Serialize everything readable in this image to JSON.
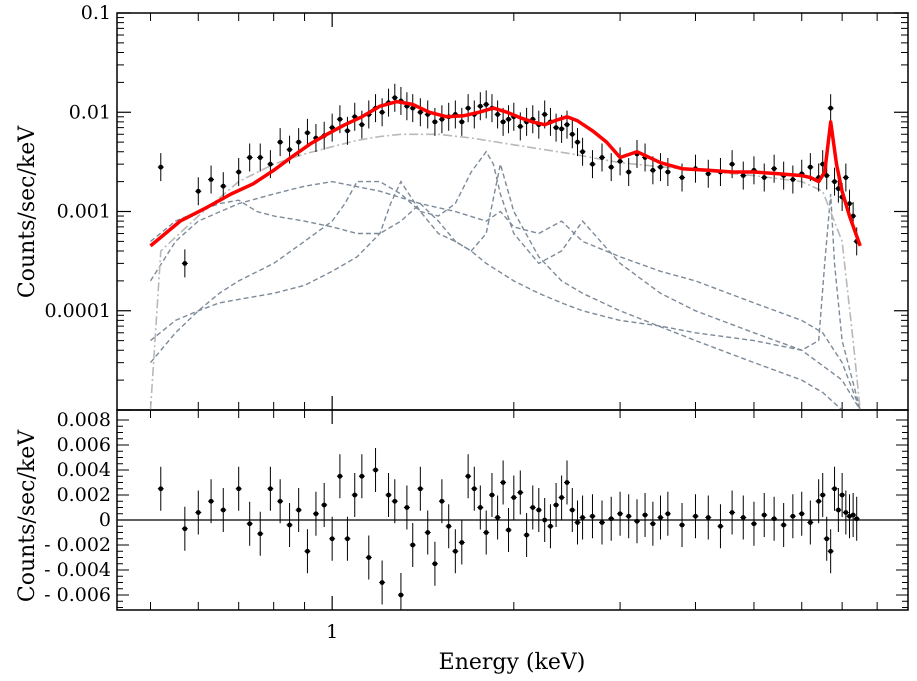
{
  "chart_data": [
    {
      "panel": "spectrum",
      "type": "scatter",
      "x_scale": "log",
      "y_scale": "log",
      "xlim": [
        0.44,
        9.0
      ],
      "ylim": [
        1e-05,
        0.1
      ],
      "ylabel": "Counts/sec/keV",
      "y_tick_labels": [
        {
          "value": 0.1,
          "label": "0.1"
        },
        {
          "value": 0.01,
          "label": "0.01"
        },
        {
          "value": 0.001,
          "label": "0.001"
        },
        {
          "value": 0.0001,
          "label": "0.0001"
        }
      ],
      "colors": {
        "data": "#000000",
        "model": "#ff0000",
        "continuum": "#b9b9b9",
        "components": "#7d8b99"
      },
      "model": {
        "name": "total model",
        "x": [
          0.5,
          0.56,
          0.62,
          0.68,
          0.74,
          0.8,
          0.86,
          0.92,
          0.98,
          1.05,
          1.12,
          1.2,
          1.28,
          1.36,
          1.45,
          1.55,
          1.65,
          1.75,
          1.85,
          1.95,
          2.05,
          2.15,
          2.25,
          2.35,
          2.45,
          2.55,
          2.7,
          2.85,
          3.0,
          3.2,
          3.5,
          3.8,
          4.2,
          4.6,
          5.0,
          5.5,
          6.0,
          6.2,
          6.4,
          6.55,
          6.7,
          6.85,
          7.0,
          7.2,
          7.5
        ],
        "y": [
          0.00045,
          0.0008,
          0.0011,
          0.0015,
          0.0019,
          0.0026,
          0.0036,
          0.0048,
          0.006,
          0.0075,
          0.009,
          0.0115,
          0.0128,
          0.012,
          0.01,
          0.009,
          0.0092,
          0.01,
          0.011,
          0.01,
          0.0088,
          0.008,
          0.0075,
          0.0083,
          0.009,
          0.0082,
          0.0065,
          0.005,
          0.0035,
          0.004,
          0.0031,
          0.0027,
          0.0026,
          0.0025,
          0.0025,
          0.0024,
          0.0023,
          0.0022,
          0.002,
          0.0025,
          0.008,
          0.003,
          0.0016,
          0.0009,
          0.00045
        ]
      },
      "continuum": {
        "name": "continuum component",
        "x": [
          0.5,
          0.52,
          0.6,
          0.7,
          0.8,
          0.9,
          1.0,
          1.1,
          1.2,
          1.3,
          1.5,
          1.7,
          2.0,
          2.5,
          3.0,
          4.0,
          5.0,
          6.0,
          6.5,
          7.0,
          7.3,
          7.5
        ],
        "y": [
          1e-05,
          0.0004,
          0.0009,
          0.002,
          0.003,
          0.0038,
          0.0045,
          0.0052,
          0.0057,
          0.006,
          0.006,
          0.0055,
          0.0047,
          0.0038,
          0.0031,
          0.0026,
          0.0023,
          0.002,
          0.0016,
          0.0005,
          5e-05,
          1e-05
        ]
      },
      "components": [
        {
          "name": "component 1",
          "x": [
            0.5,
            0.55,
            0.6,
            0.65,
            0.7,
            0.8,
            0.9,
            1.0,
            1.1,
            1.2,
            1.25,
            1.3,
            1.4,
            1.5,
            1.6,
            1.7,
            1.8,
            1.9,
            2.0,
            2.2,
            2.4,
            2.6,
            3.0,
            4.0,
            5.0,
            6.0,
            6.5,
            7.0,
            7.5
          ],
          "y": [
            5e-05,
            8e-05,
            0.0001,
            0.00012,
            0.00013,
            0.00015,
            0.00018,
            0.00025,
            0.00035,
            0.0006,
            0.0012,
            0.002,
            0.001,
            0.0006,
            0.0005,
            0.0004,
            0.0006,
            0.003,
            0.001,
            0.00035,
            0.0002,
            0.00015,
            0.0001,
            5e-05,
            3e-05,
            2e-05,
            1.5e-05,
            1e-05,
            1e-05
          ]
        },
        {
          "name": "component 2",
          "x": [
            0.5,
            0.55,
            0.6,
            0.7,
            0.8,
            0.9,
            1.0,
            1.2,
            1.4,
            1.6,
            1.8,
            1.9,
            2.0,
            2.2,
            2.4,
            2.6,
            3.0,
            3.5,
            4.0,
            5.0,
            6.0,
            6.5,
            7.0,
            7.5
          ],
          "y": [
            0.0002,
            0.0005,
            0.0008,
            0.0012,
            0.0015,
            0.0018,
            0.002,
            0.0016,
            0.0012,
            0.001,
            0.0008,
            0.001,
            0.0007,
            0.0006,
            0.0008,
            0.0005,
            0.00035,
            0.00025,
            0.0002,
            0.00012,
            8e-05,
            6e-05,
            3e-05,
            1e-05
          ]
        },
        {
          "name": "component 3",
          "x": [
            0.5,
            0.55,
            0.6,
            0.65,
            0.7,
            0.75,
            0.8,
            0.9,
            1.0,
            1.1,
            1.2,
            1.3,
            1.4,
            1.5,
            1.6,
            1.7,
            1.8,
            2.0,
            2.2,
            2.4,
            2.6,
            3.0,
            3.5,
            4.0,
            5.0,
            6.0,
            6.4,
            6.55,
            6.7,
            6.8,
            7.0,
            7.5
          ],
          "y": [
            0.0005,
            0.0008,
            0.001,
            0.0012,
            0.0013,
            0.001,
            0.0009,
            0.0008,
            0.0007,
            0.0006,
            0.0006,
            0.0008,
            0.0012,
            0.0008,
            0.0005,
            0.0004,
            0.0003,
            0.0002,
            0.00015,
            0.00012,
            0.0001,
            8e-05,
            7e-05,
            6e-05,
            5e-05,
            4e-05,
            5e-05,
            0.0003,
            0.0015,
            0.0003,
            5e-05,
            1e-05
          ]
        },
        {
          "name": "component 4",
          "x": [
            0.5,
            0.55,
            0.6,
            0.65,
            0.7,
            0.8,
            0.9,
            1.0,
            1.05,
            1.1,
            1.2,
            1.3,
            1.4,
            1.5,
            1.6,
            1.7,
            1.8,
            1.85,
            1.9,
            2.0,
            2.2,
            2.4,
            2.6,
            3.0,
            3.5,
            4.0,
            5.0,
            6.0,
            7.0,
            7.5
          ],
          "y": [
            3e-05,
            6e-05,
            0.0001,
            0.00015,
            0.0002,
            0.0003,
            0.0005,
            0.0008,
            0.0012,
            0.002,
            0.002,
            0.0015,
            0.001,
            0.0009,
            0.0012,
            0.0025,
            0.004,
            0.003,
            0.0015,
            0.0006,
            0.0003,
            0.0004,
            0.0008,
            0.0003,
            0.00015,
            0.0001,
            6e-05,
            4e-05,
            2e-05,
            1e-05
          ]
        }
      ],
      "data_points": {
        "x": [
          0.52,
          0.57,
          0.6,
          0.63,
          0.66,
          0.7,
          0.73,
          0.76,
          0.79,
          0.82,
          0.85,
          0.88,
          0.91,
          0.94,
          0.97,
          1.0,
          1.03,
          1.06,
          1.09,
          1.12,
          1.15,
          1.18,
          1.21,
          1.24,
          1.27,
          1.3,
          1.33,
          1.36,
          1.4,
          1.44,
          1.48,
          1.52,
          1.56,
          1.6,
          1.64,
          1.68,
          1.72,
          1.76,
          1.8,
          1.84,
          1.88,
          1.92,
          1.96,
          2.0,
          2.05,
          2.1,
          2.15,
          2.2,
          2.25,
          2.3,
          2.35,
          2.4,
          2.45,
          2.5,
          2.55,
          2.6,
          2.7,
          2.8,
          2.9,
          3.0,
          3.1,
          3.2,
          3.3,
          3.4,
          3.5,
          3.6,
          3.8,
          4.0,
          4.2,
          4.4,
          4.6,
          4.8,
          5.0,
          5.2,
          5.4,
          5.6,
          5.8,
          6.0,
          6.2,
          6.4,
          6.5,
          6.6,
          6.7,
          6.8,
          6.9,
          7.0,
          7.1,
          7.2,
          7.3,
          7.4
        ],
        "y": [
          0.0028,
          0.0003,
          0.0016,
          0.0021,
          0.0018,
          0.0025,
          0.0035,
          0.0035,
          0.003,
          0.005,
          0.0042,
          0.005,
          0.0062,
          0.0055,
          0.0058,
          0.007,
          0.0085,
          0.0065,
          0.009,
          0.0075,
          0.0095,
          0.011,
          0.01,
          0.0125,
          0.014,
          0.013,
          0.0115,
          0.011,
          0.01,
          0.0095,
          0.008,
          0.0085,
          0.009,
          0.0095,
          0.008,
          0.011,
          0.0095,
          0.0115,
          0.012,
          0.011,
          0.0095,
          0.008,
          0.0085,
          0.009,
          0.0072,
          0.008,
          0.0085,
          0.0075,
          0.0095,
          0.008,
          0.007,
          0.0068,
          0.0075,
          0.006,
          0.005,
          0.004,
          0.003,
          0.0035,
          0.0028,
          0.0032,
          0.0025,
          0.0038,
          0.0035,
          0.0026,
          0.0028,
          0.0025,
          0.0022,
          0.0027,
          0.0024,
          0.0025,
          0.003,
          0.0023,
          0.0026,
          0.0022,
          0.0027,
          0.0023,
          0.0021,
          0.0024,
          0.0028,
          0.0022,
          0.003,
          0.0023,
          0.011,
          0.002,
          0.0017,
          0.0014,
          0.0022,
          0.0012,
          0.0009,
          0.0005
        ]
      }
    },
    {
      "panel": "residuals",
      "type": "scatter",
      "x_scale": "log",
      "y_scale": "linear",
      "xlim": [
        0.44,
        9.0
      ],
      "ylim": [
        -0.0072,
        0.0088
      ],
      "xlabel": "Energy (keV)",
      "ylabel": "Counts/sec/keV",
      "x_tick_labels": [
        {
          "value": 1,
          "label": "1"
        }
      ],
      "y_tick_labels": [
        {
          "value": 0.008,
          "label": "0.008"
        },
        {
          "value": 0.006,
          "label": "0.006"
        },
        {
          "value": 0.004,
          "label": "0.004"
        },
        {
          "value": 0.002,
          "label": "0.002"
        },
        {
          "value": 0,
          "label": "0"
        },
        {
          "value": -0.002,
          "label": "- 0.002"
        },
        {
          "value": -0.004,
          "label": "- 0.004"
        },
        {
          "value": -0.006,
          "label": "- 0.006"
        }
      ],
      "zero_line": 0,
      "residuals": {
        "x": [
          0.52,
          0.57,
          0.6,
          0.63,
          0.66,
          0.7,
          0.73,
          0.76,
          0.79,
          0.82,
          0.85,
          0.88,
          0.91,
          0.94,
          0.97,
          1.0,
          1.03,
          1.06,
          1.09,
          1.12,
          1.15,
          1.18,
          1.21,
          1.24,
          1.27,
          1.3,
          1.33,
          1.36,
          1.4,
          1.44,
          1.48,
          1.52,
          1.56,
          1.6,
          1.64,
          1.68,
          1.72,
          1.76,
          1.8,
          1.84,
          1.88,
          1.92,
          1.96,
          2.0,
          2.05,
          2.1,
          2.15,
          2.2,
          2.25,
          2.3,
          2.35,
          2.4,
          2.45,
          2.5,
          2.55,
          2.6,
          2.7,
          2.8,
          2.9,
          3.0,
          3.1,
          3.2,
          3.3,
          3.4,
          3.5,
          3.6,
          3.8,
          4.0,
          4.2,
          4.4,
          4.6,
          4.8,
          5.0,
          5.2,
          5.4,
          5.6,
          5.8,
          6.0,
          6.2,
          6.4,
          6.5,
          6.6,
          6.7,
          6.8,
          6.9,
          7.0,
          7.1,
          7.2,
          7.3,
          7.4
        ],
        "y": [
          0.0025,
          -0.0007,
          0.0006,
          0.0015,
          0.0008,
          0.0025,
          -0.0003,
          -0.0011,
          0.0025,
          0.0015,
          -0.0004,
          0.0008,
          -0.0025,
          0.0005,
          0.0012,
          -0.0015,
          0.0035,
          -0.0015,
          0.002,
          0.0035,
          -0.003,
          0.004,
          -0.005,
          0.002,
          0.0015,
          -0.006,
          0.001,
          -0.002,
          0.0025,
          -0.001,
          -0.0035,
          0.0015,
          -0.0005,
          -0.0025,
          -0.0018,
          0.0035,
          0.0025,
          0.001,
          -0.001,
          0.002,
          0.0002,
          0.003,
          -0.0008,
          0.0018,
          0.0022,
          -0.0012,
          0.001,
          0.0008,
          0.0,
          -0.0005,
          0.0012,
          0.0018,
          0.003,
          0.0008,
          -0.0002,
          0.0002,
          0.0003,
          -0.0002,
          0.0001,
          0.0005,
          0.0003,
          -0.0001,
          0.0004,
          -0.0003,
          0.0002,
          0.0005,
          -0.0004,
          0.0003,
          0.0002,
          -0.0005,
          0.0006,
          0.0002,
          -0.0003,
          0.0004,
          0.0001,
          -0.0004,
          0.0003,
          0.0005,
          -0.0002,
          0.0015,
          0.002,
          -0.0015,
          -0.0025,
          0.0025,
          0.0008,
          0.002,
          0.0006,
          0.0003,
          0.0004,
          0.0001
        ]
      }
    }
  ]
}
